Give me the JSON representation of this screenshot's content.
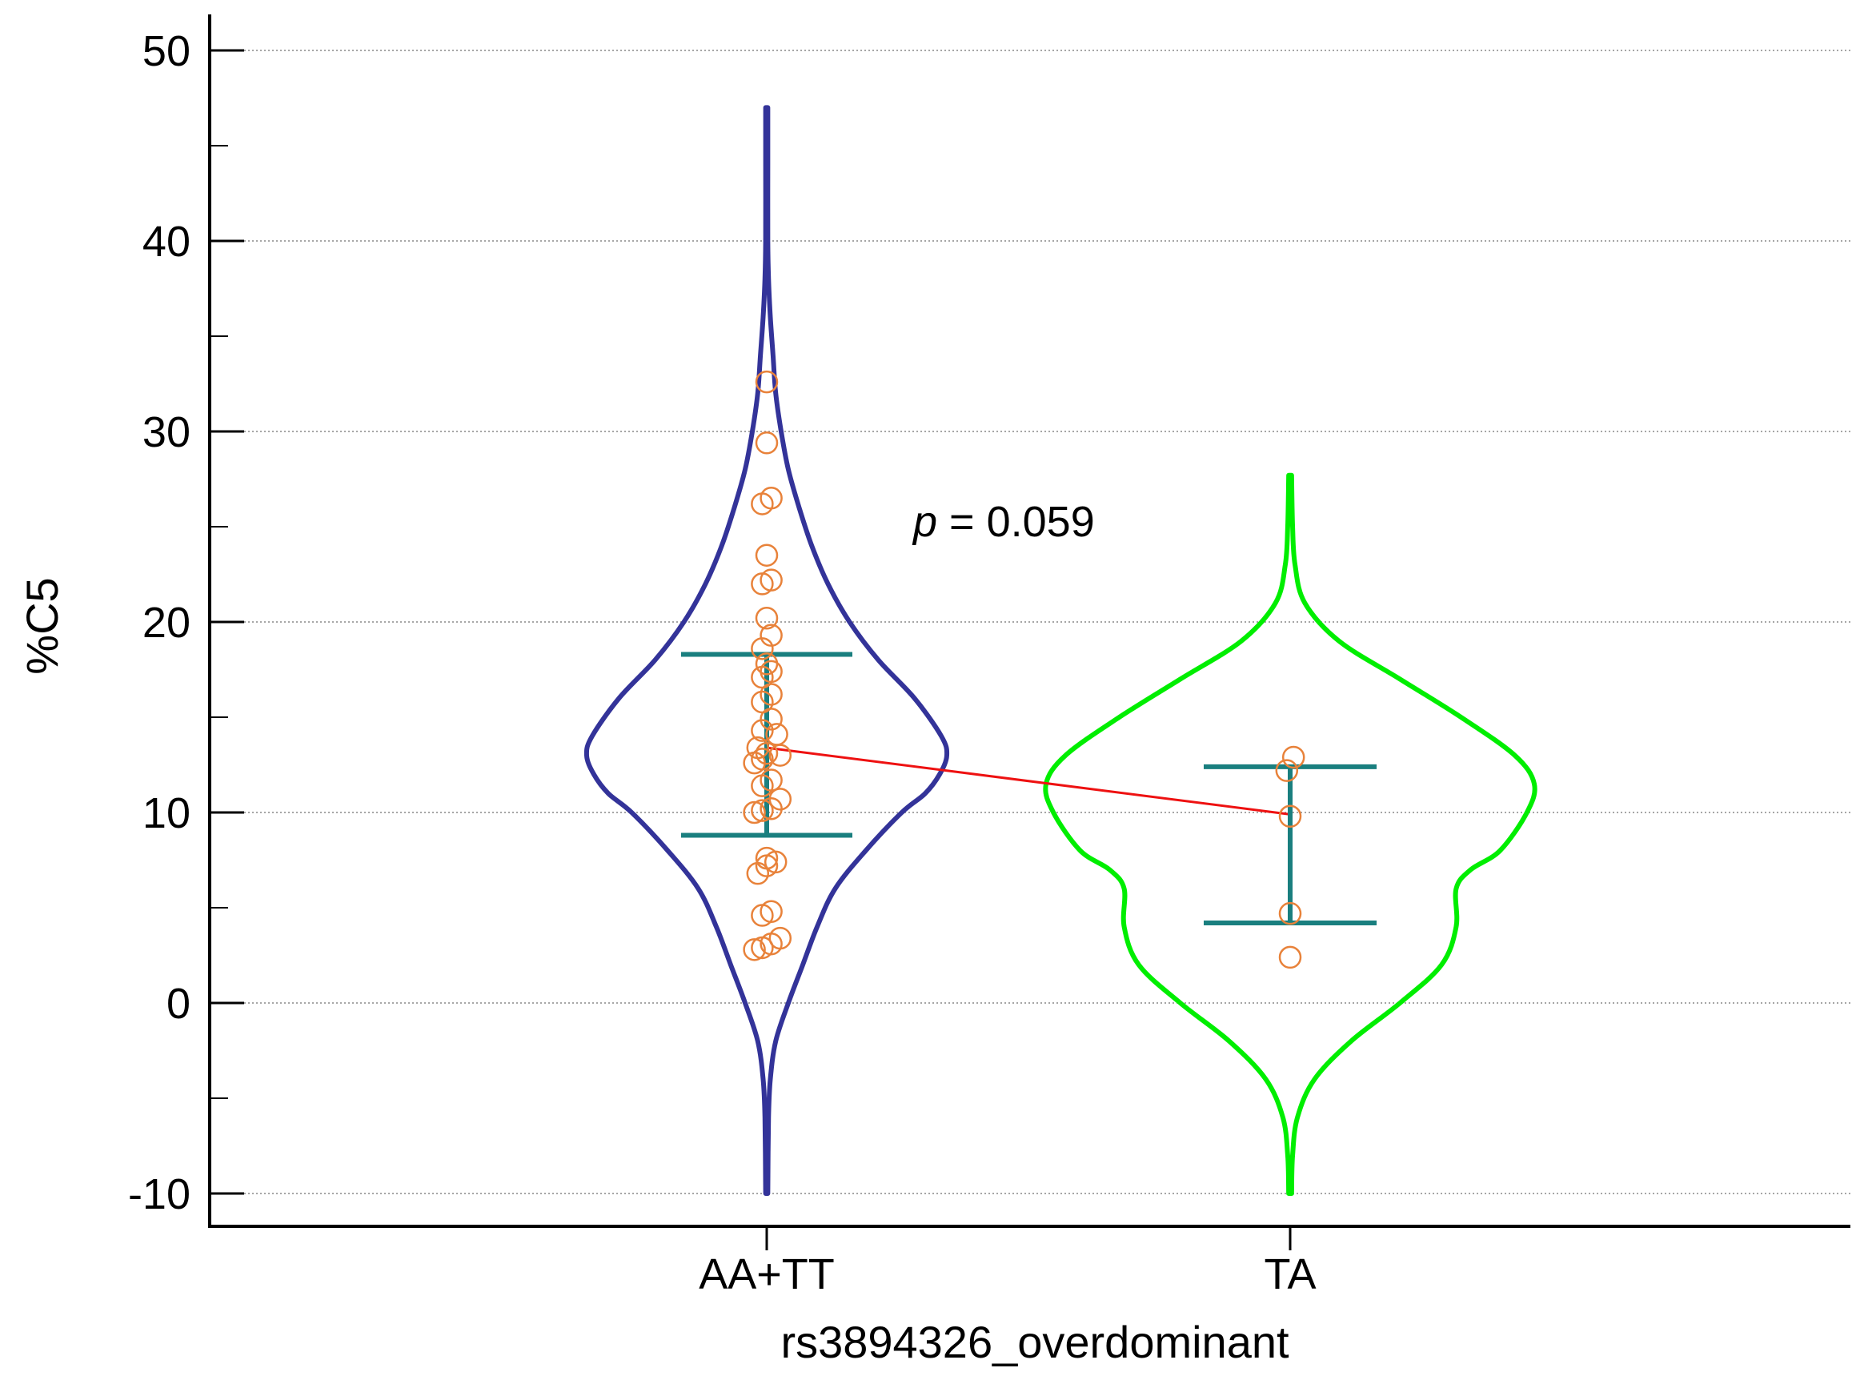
{
  "chart_data": {
    "type": "violin",
    "ylabel": "%C5",
    "xlabel": "rs3894326_overdominant",
    "ylim": [
      -12,
      52
    ],
    "yticks": [
      -10,
      0,
      10,
      20,
      30,
      40,
      50
    ],
    "ytick_labels": [
      "-10",
      "0",
      "10",
      "20",
      "30",
      "40",
      "50"
    ],
    "y_minor_step": 5,
    "grid": "horizontal dotted at major ticks",
    "annotation": {
      "prefix": "p",
      "text": " = 0.059"
    },
    "categories": [
      "AA+TT",
      "TA"
    ],
    "groups": [
      {
        "name": "AA+TT",
        "color": "#333399",
        "violin_range": [
          -10,
          47
        ],
        "density": [
          [
            -10,
            0.005
          ],
          [
            -6,
            0.01
          ],
          [
            -4,
            0.02
          ],
          [
            -2,
            0.05
          ],
          [
            0,
            0.12
          ],
          [
            2,
            0.2
          ],
          [
            4,
            0.28
          ],
          [
            6,
            0.38
          ],
          [
            8,
            0.55
          ],
          [
            10,
            0.75
          ],
          [
            11,
            0.88
          ],
          [
            12,
            0.96
          ],
          [
            13,
            1.0
          ],
          [
            14,
            0.97
          ],
          [
            16,
            0.82
          ],
          [
            18,
            0.62
          ],
          [
            20,
            0.46
          ],
          [
            22,
            0.34
          ],
          [
            24,
            0.25
          ],
          [
            26,
            0.18
          ],
          [
            28,
            0.12
          ],
          [
            30,
            0.08
          ],
          [
            32,
            0.05
          ],
          [
            34,
            0.035
          ],
          [
            36,
            0.02
          ],
          [
            38,
            0.01
          ],
          [
            40,
            0.006
          ],
          [
            44,
            0.004
          ],
          [
            47,
            0.003
          ]
        ],
        "mean": 13.4,
        "error_low": 8.8,
        "error_high": 18.3,
        "points": [
          [
            0,
            32.6
          ],
          [
            0,
            29.4
          ],
          [
            -0.04,
            26.2
          ],
          [
            0.04,
            26.5
          ],
          [
            0,
            23.5
          ],
          [
            -0.04,
            22.0
          ],
          [
            0.04,
            22.2
          ],
          [
            0,
            20.2
          ],
          [
            -0.04,
            18.6
          ],
          [
            0.04,
            19.3
          ],
          [
            0,
            17.8
          ],
          [
            -0.04,
            17.1
          ],
          [
            0.04,
            17.4
          ],
          [
            -0.04,
            15.8
          ],
          [
            0.04,
            16.2
          ],
          [
            0.04,
            14.9
          ],
          [
            -0.04,
            14.3
          ],
          [
            0.09,
            14.1
          ],
          [
            -0.08,
            13.4
          ],
          [
            0.12,
            13.0
          ],
          [
            0,
            13.1
          ],
          [
            -0.11,
            12.6
          ],
          [
            -0.04,
            12.8
          ],
          [
            0.04,
            11.7
          ],
          [
            -0.04,
            11.4
          ],
          [
            0.12,
            10.7
          ],
          [
            -0.11,
            10.0
          ],
          [
            -0.04,
            10.1
          ],
          [
            0.04,
            10.2
          ],
          [
            0,
            7.6
          ],
          [
            0,
            7.2
          ],
          [
            0.08,
            7.4
          ],
          [
            -0.08,
            6.8
          ],
          [
            -0.04,
            4.6
          ],
          [
            0.04,
            4.8
          ],
          [
            0.12,
            3.4
          ],
          [
            -0.11,
            2.8
          ],
          [
            -0.04,
            2.9
          ],
          [
            0.04,
            3.1
          ]
        ]
      },
      {
        "name": "TA",
        "color": "#00ee00",
        "violin_range": [
          -10,
          27.7
        ],
        "density": [
          [
            -10,
            0.005
          ],
          [
            -8,
            0.01
          ],
          [
            -6,
            0.03
          ],
          [
            -4,
            0.1
          ],
          [
            -2,
            0.25
          ],
          [
            0,
            0.45
          ],
          [
            2,
            0.62
          ],
          [
            4,
            0.68
          ],
          [
            6,
            0.68
          ],
          [
            7,
            0.74
          ],
          [
            8,
            0.86
          ],
          [
            10,
            0.97
          ],
          [
            11.5,
            1.0
          ],
          [
            13,
            0.92
          ],
          [
            15,
            0.7
          ],
          [
            17,
            0.45
          ],
          [
            19,
            0.2
          ],
          [
            21,
            0.06
          ],
          [
            23,
            0.02
          ],
          [
            25,
            0.01
          ],
          [
            27.7,
            0.005
          ]
        ],
        "mean": 9.9,
        "error_low": 4.2,
        "error_high": 12.4,
        "points": [
          [
            -0.03,
            12.2
          ],
          [
            0.03,
            12.9
          ],
          [
            0,
            9.8
          ],
          [
            0,
            4.7
          ],
          [
            0,
            2.4
          ]
        ]
      }
    ],
    "marker_color": "#e8823a",
    "errorbar_color": "#1a7f7f",
    "mean_line_color": "#ee1111"
  }
}
